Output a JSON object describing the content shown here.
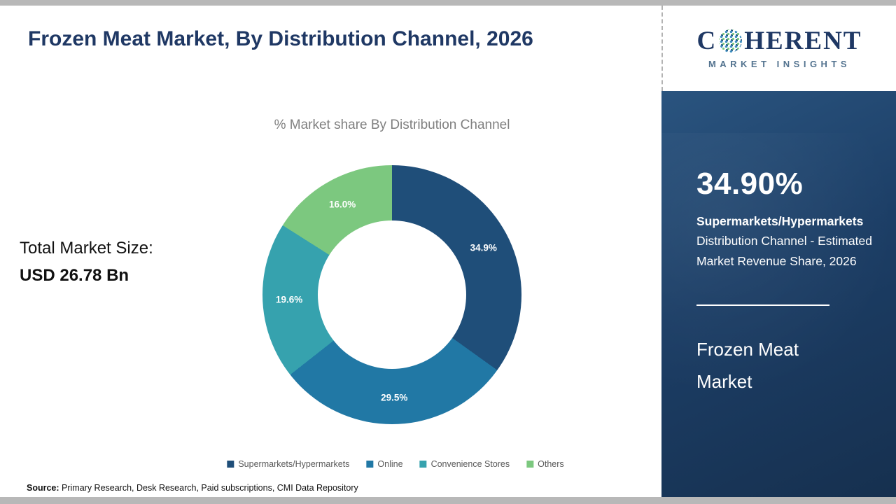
{
  "page": {
    "title": "Frozen Meat Market, By Distribution Channel, 2026",
    "source_label": "Source:",
    "source_text": " Primary Research, Desk Research, Paid subscriptions, CMI Data Repository"
  },
  "main": {
    "subtitle": "% Market share By Distribution Channel",
    "total_label": "Total Market Size:",
    "total_value": "USD 26.78 Bn"
  },
  "chart_data": {
    "type": "pie",
    "donut": true,
    "title": "% Market share By Distribution Channel",
    "categories": [
      "Supermarkets/Hypermarkets",
      "Online",
      "Convenience Stores",
      "Others"
    ],
    "values": [
      34.9,
      29.5,
      19.6,
      16.0
    ],
    "labels": [
      "34.9%",
      "29.5%",
      "19.6%",
      "16.0%"
    ],
    "colors": [
      "#1F4E79",
      "#2178A5",
      "#36A2AE",
      "#7CC87F"
    ],
    "start_angle_deg": 0,
    "legend_position": "bottom"
  },
  "side": {
    "logo": {
      "brand_c": "C",
      "brand_rest": "HERENT",
      "tagline": "MARKET INSIGHTS"
    },
    "stat_value": "34.90%",
    "stat_bold": "Supermarkets/Hypermarkets",
    "stat_rest": " Distribution Channel - Estimated Market Revenue Share, 2026",
    "panel_title": "Frozen Meat Market"
  }
}
